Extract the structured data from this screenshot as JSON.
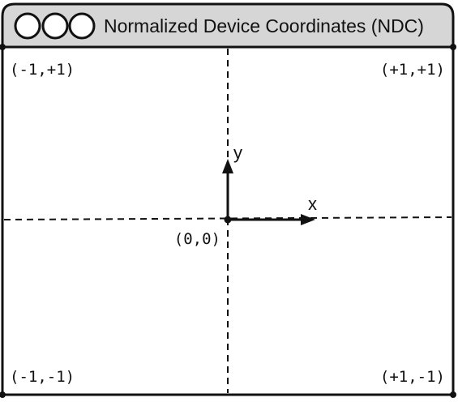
{
  "window": {
    "title": "Normalized Device Coordinates (NDC)",
    "titlebar_color": "#d6d6d6",
    "buttons": [
      "circle-button",
      "circle-button",
      "circle-button"
    ]
  },
  "corners": {
    "top_left": "(-1,+1)",
    "top_right": "(+1,+1)",
    "bottom_left": "(-1,-1)",
    "bottom_right": "(+1,-1)"
  },
  "origin": {
    "label": "(0,0)"
  },
  "axes": {
    "x_label": "x",
    "y_label": "y"
  }
}
